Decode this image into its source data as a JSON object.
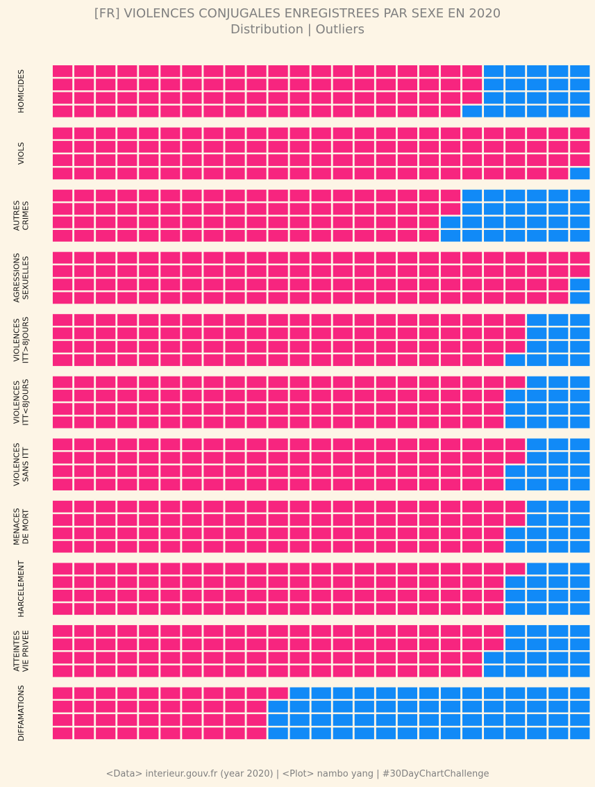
{
  "title": "[FR] VIOLENCES CONJUGALES ENREGISTREES PAR SEXE EN 2020",
  "subtitle": "Distribution | Outliers",
  "footer": "<Data> interieur.gouv.fr (year 2020) | <Plot> nambo yang | #30DayChartChallenge",
  "colors": {
    "female": "#f7257f",
    "male": "#118af7",
    "background": "#fdf5e6",
    "text": "#808080"
  },
  "chart_data": {
    "type": "waffle",
    "grid": {
      "rows": 4,
      "columns": 25,
      "units_per_category": 100,
      "fill_order": "column-major, top to bottom"
    },
    "series": [
      {
        "key": "female",
        "color": "#f7257f"
      },
      {
        "key": "male",
        "color": "#118af7"
      }
    ],
    "categories": [
      {
        "label": [
          "HOMICIDES"
        ],
        "female": 79,
        "male": 21
      },
      {
        "label": [
          "VIOLS"
        ],
        "female": 99,
        "male": 1
      },
      {
        "label": [
          "AUTRES",
          "CRIMES"
        ],
        "female": 74,
        "male": 26
      },
      {
        "label": [
          "AGRESSIONS",
          "SEXUELLES"
        ],
        "female": 98,
        "male": 2
      },
      {
        "label": [
          "VIOLENCES",
          "ITT>8JOURS"
        ],
        "female": 87,
        "male": 13
      },
      {
        "label": [
          "VIOLENCES",
          "ITT<8JOURS"
        ],
        "female": 85,
        "male": 15
      },
      {
        "label": [
          "VIOLENCES",
          "SANS ITT"
        ],
        "female": 86,
        "male": 14
      },
      {
        "label": [
          "MENACES",
          "DE MORT"
        ],
        "female": 86,
        "male": 14
      },
      {
        "label": [
          "HARCELEMENT"
        ],
        "female": 85,
        "male": 15
      },
      {
        "label": [
          "ATTEINTES",
          "VIE PRIVEE"
        ],
        "female": 82,
        "male": 18
      },
      {
        "label": [
          "DIFFAMATIONS"
        ],
        "female": 41,
        "male": 59
      }
    ]
  }
}
